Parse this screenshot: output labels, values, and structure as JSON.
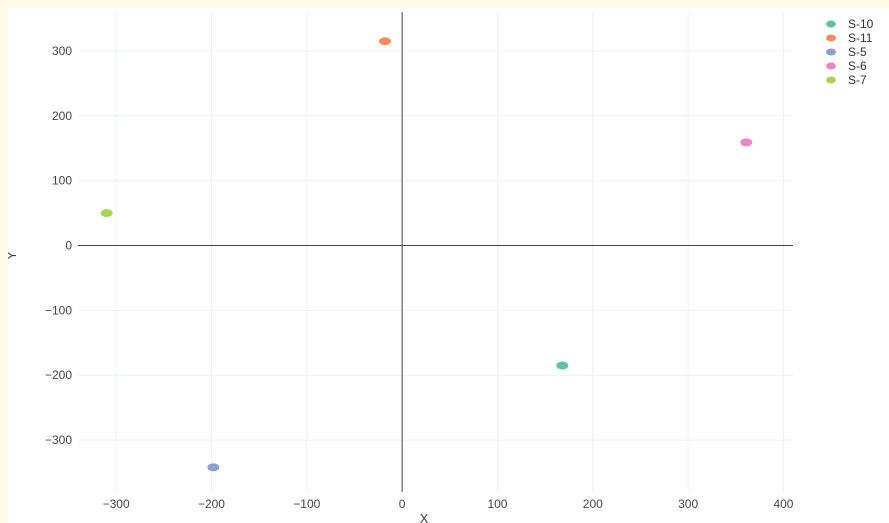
{
  "chart_data": {
    "type": "scatter",
    "title": "",
    "xlabel": "X",
    "ylabel": "Y",
    "xlim": [
      -340,
      410
    ],
    "ylim": [
      -380,
      360
    ],
    "xticks": [
      -300,
      -200,
      -100,
      0,
      100,
      200,
      300,
      400
    ],
    "yticks": [
      -300,
      -200,
      -100,
      0,
      100,
      200,
      300
    ],
    "xtick_labels": [
      "−300",
      "−200",
      "−100",
      "0",
      "100",
      "200",
      "300",
      "400"
    ],
    "ytick_labels": [
      "−300",
      "−200",
      "−100",
      "0",
      "100",
      "200",
      "300"
    ],
    "grid": true,
    "zero_lines": true,
    "legend": "top-right",
    "series": [
      {
        "name": "S-10",
        "color": "#66c2a5",
        "points": [
          {
            "x": 168,
            "y": -185
          }
        ]
      },
      {
        "name": "S-11",
        "color": "#fc8d62",
        "points": [
          {
            "x": -18,
            "y": 315
          }
        ]
      },
      {
        "name": "S-5",
        "color": "#8da0cb",
        "points": [
          {
            "x": -198,
            "y": -342
          }
        ]
      },
      {
        "name": "S-6",
        "color": "#e78ac3",
        "points": [
          {
            "x": 361,
            "y": 159
          }
        ]
      },
      {
        "name": "S-7",
        "color": "#a6d854",
        "points": [
          {
            "x": -310,
            "y": 50
          }
        ]
      }
    ]
  },
  "colors": {
    "page_background": "#fffbe6",
    "plot_background": "#ffffff",
    "grid": "#eef0f4",
    "zero_line": "#444444",
    "tick_text": "#444444"
  }
}
